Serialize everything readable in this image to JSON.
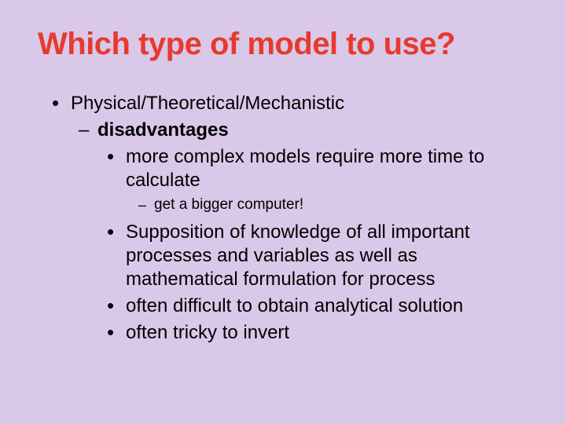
{
  "slide": {
    "background_color": "#d9c8e8",
    "title": {
      "text": "Which type of model to use?",
      "color": "#e63a2e",
      "fontsize": 40,
      "weight": "bold"
    },
    "body_fontsize": 24,
    "body_fontsize_small": 19,
    "text_color": "#000000",
    "bullets": {
      "lvl1": "•",
      "lvl2": "–",
      "lvl3": "•",
      "lvl4": "–"
    },
    "items": {
      "i1": {
        "level": 1,
        "text": "Physical/Theoretical/Mechanistic",
        "bold": false
      },
      "i2": {
        "level": 2,
        "text": "disadvantages",
        "bold": true
      },
      "i3": {
        "level": 3,
        "text": "more complex models require more time to calculate",
        "bold": false
      },
      "i4": {
        "level": 4,
        "text": "get a bigger computer!",
        "bold": false,
        "small": true
      },
      "i5": {
        "level": 3,
        "text": "Supposition of knowledge of all important processes and variables as well as mathematical formulation for process",
        "bold": false
      },
      "i6": {
        "level": 3,
        "text": "often difficult to obtain analytical solution",
        "bold": false
      },
      "i7": {
        "level": 3,
        "text": "often tricky to invert",
        "bold": false
      }
    }
  }
}
